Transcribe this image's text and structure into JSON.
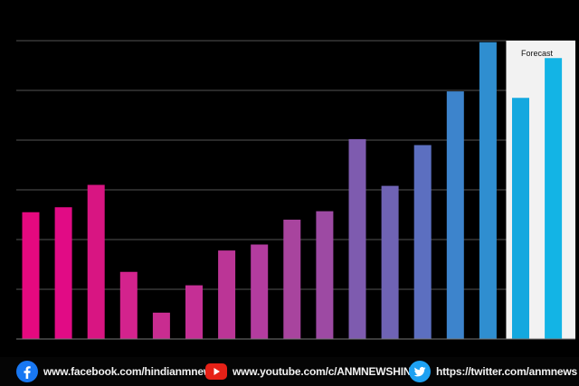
{
  "chart_data": {
    "type": "bar",
    "annotation": "Forecast",
    "ylim": [
      0,
      6
    ],
    "grid": true,
    "values": [
      2.55,
      2.65,
      3.1,
      1.35,
      0.53,
      1.08,
      1.78,
      1.9,
      2.4,
      2.57,
      4.02,
      3.08,
      3.9,
      4.98,
      5.97,
      4.85,
      5.65
    ],
    "forecast_from_index": 15,
    "colors": [
      "#e5097f",
      "#e10b85",
      "#d81582",
      "#d3238d",
      "#c92c90",
      "#c52f95",
      "#bb3596",
      "#b33c9f",
      "#a8449e",
      "#9d4aa3",
      "#7e5baf",
      "#6f63b4",
      "#5c6fc0",
      "#3d84cc",
      "#2f8ed0",
      "#14a8df",
      "#13b4e5"
    ],
    "forecast_band_color": "#f2f2f2"
  },
  "footer": {
    "facebook": {
      "icon": "facebook-icon",
      "text": "www.facebook.com/hindianmnews/"
    },
    "youtube": {
      "icon": "youtube-icon",
      "text": "www.youtube.com/c/ANMNEWSHINDI"
    },
    "twitter": {
      "icon": "twitter-icon",
      "text": "https://twitter.com/anmnews"
    }
  }
}
